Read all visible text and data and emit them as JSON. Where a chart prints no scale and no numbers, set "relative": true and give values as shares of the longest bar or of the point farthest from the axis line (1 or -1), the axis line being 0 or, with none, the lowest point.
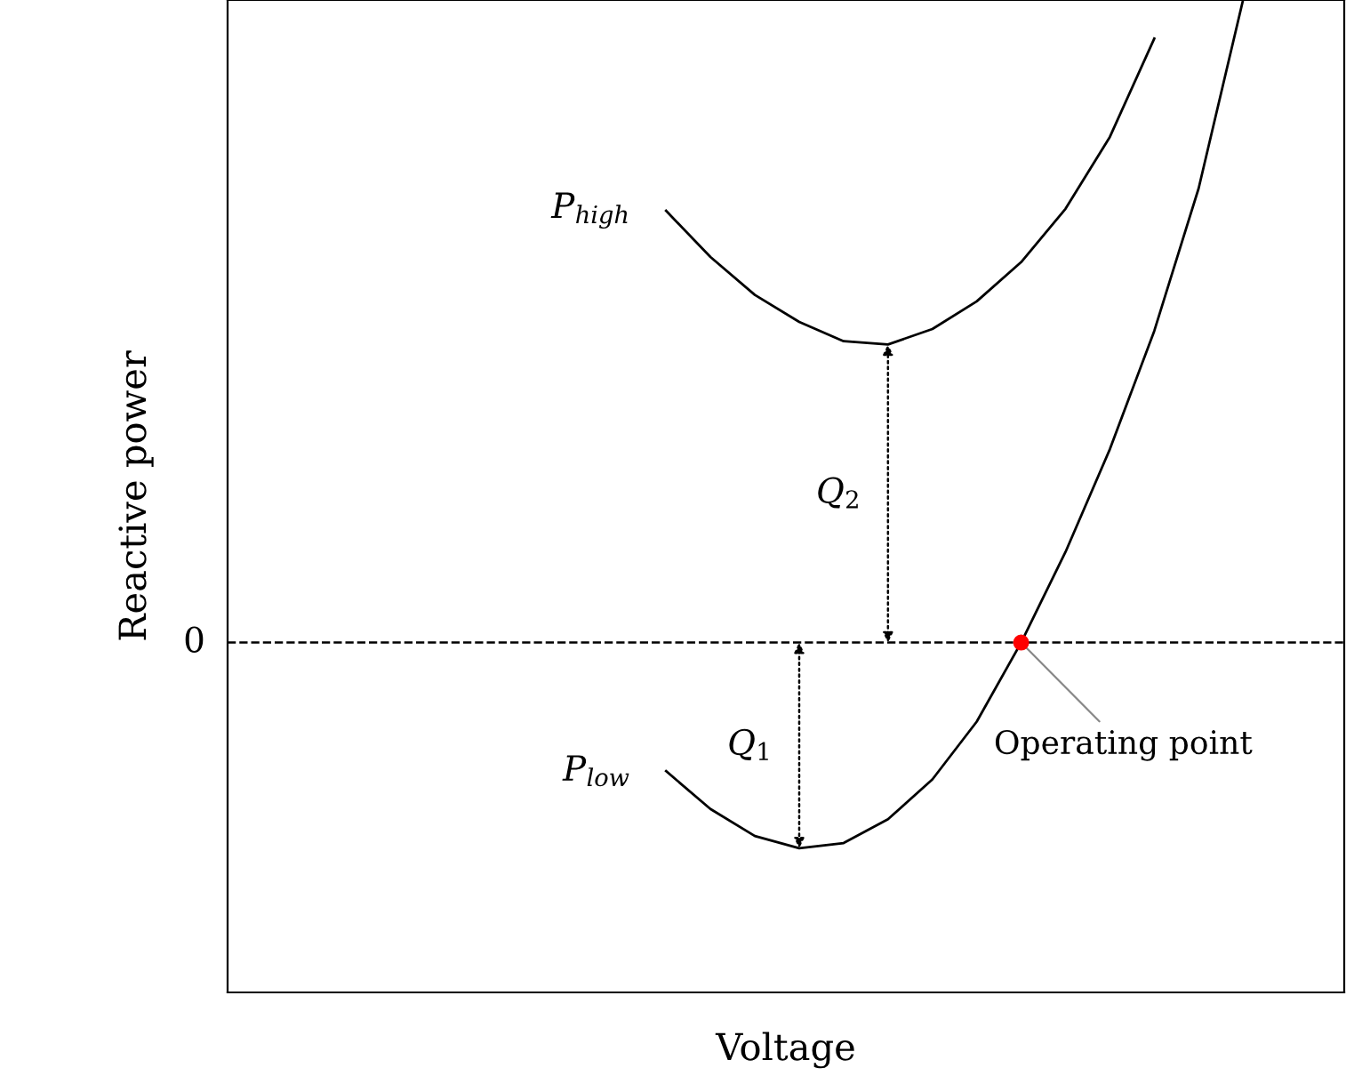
{
  "chart_data": {
    "type": "line",
    "relative": true,
    "xlabel": "Voltage",
    "ylabel": "Reactive power",
    "marker": "none",
    "line_style": "solid",
    "categories": [
      null,
      null,
      null,
      null,
      null,
      null,
      null,
      null,
      null,
      null,
      null,
      null,
      null,
      null,
      null,
      null,
      null,
      null,
      null,
      null,
      null,
      null,
      null,
      null,
      null,
      null
    ],
    "series": [
      {
        "name": "P$_{high}$",
        "color": "#000000",
        "values": [
          null,
          null,
          null,
          null,
          null,
          null,
          null,
          null,
          null,
          null,
          0.672,
          0.6,
          0.541,
          0.499,
          0.469,
          0.464,
          0.488,
          0.531,
          0.592,
          0.675,
          0.787,
          0.94,
          null,
          null,
          null,
          null
        ]
      },
      {
        "name": "P$_{low}$",
        "color": "#000000",
        "values": [
          null,
          null,
          null,
          null,
          null,
          null,
          null,
          null,
          null,
          null,
          -0.2,
          -0.259,
          -0.301,
          -0.32,
          -0.312,
          -0.275,
          -0.213,
          -0.123,
          0,
          0.141,
          0.301,
          0.485,
          0.707,
          1.0,
          null,
          null
        ]
      }
    ],
    "ref_lines": [
      {
        "axis": "y",
        "value": 0,
        "label": "0",
        "color": "#000000",
        "line_style": "dashed"
      }
    ],
    "annotations": [
      "Q$_{2}$",
      "Q$_{1}$",
      {
        "text": "Operating point",
        "y": 0
      }
    ]
  }
}
